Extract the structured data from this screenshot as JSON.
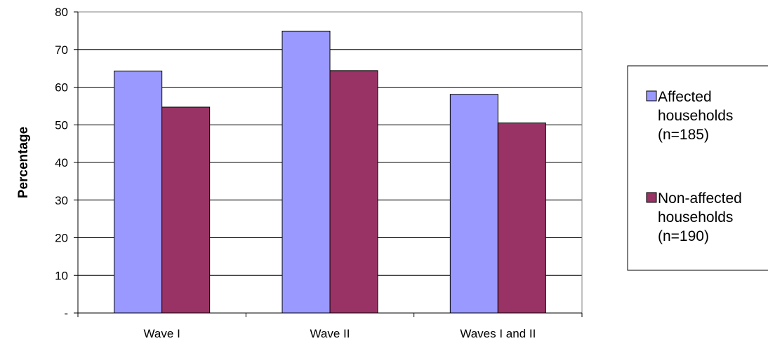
{
  "chart_data": {
    "type": "bar",
    "title": "",
    "xlabel": "",
    "ylabel": "Percentage",
    "ylim": [
      0,
      80
    ],
    "y_ticks": [
      0,
      10,
      20,
      30,
      40,
      50,
      60,
      70,
      80
    ],
    "y_tick_labels": [
      "-",
      "10",
      "20",
      "30",
      "40",
      "50",
      "60",
      "70",
      "80"
    ],
    "categories": [
      "Wave I",
      "Wave II",
      "Waves I and II"
    ],
    "series": [
      {
        "name": "Affected households (n=185)",
        "legend_lines": [
          "Affected",
          "households",
          "(n=185)"
        ],
        "color": "#9999FF",
        "values": [
          64.3,
          74.9,
          58.1
        ]
      },
      {
        "name": "Non-affected households (n=190)",
        "legend_lines": [
          "Non-affected",
          "households",
          "(n=190)"
        ],
        "color": "#993366",
        "values": [
          54.7,
          64.4,
          50.5
        ]
      }
    ],
    "grid": true,
    "legend_position": "right"
  }
}
